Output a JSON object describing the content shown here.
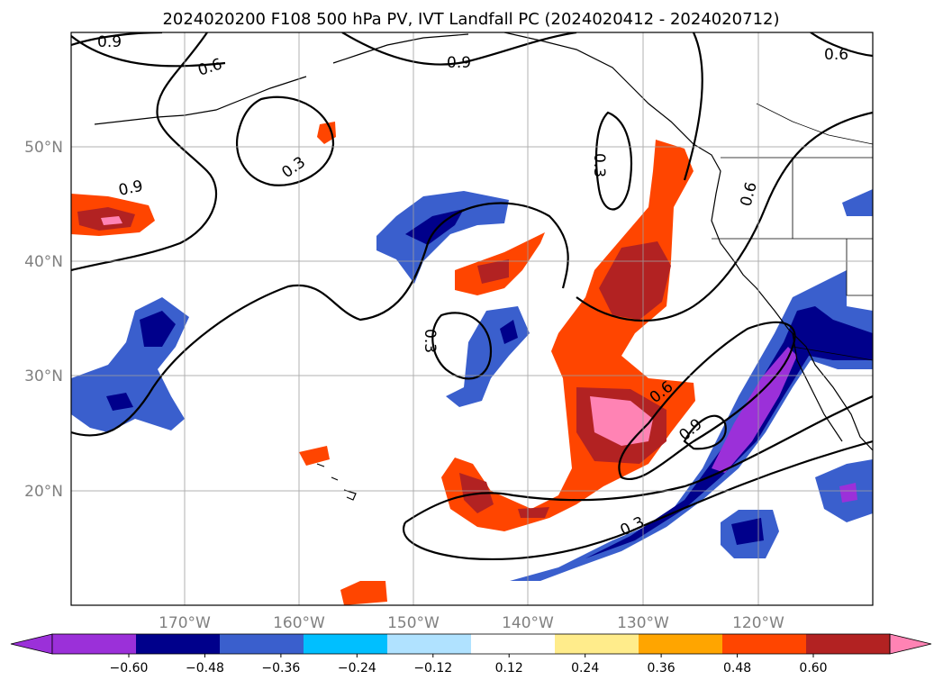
{
  "title": "2024020200 F108 500 hPa PV, IVT Landfall PC (2024020412 - 2024020712)",
  "map": {
    "lon_labels": [
      "170°W",
      "160°W",
      "150°W",
      "140°W",
      "130°W",
      "120°W"
    ],
    "lat_labels": [
      "50°N",
      "40°N",
      "30°N",
      "20°N"
    ],
    "contour_labels": [
      "0.9",
      "0.6",
      "0.9",
      "0.6",
      "0.3",
      "0.9",
      "0.3",
      "0.6",
      "0.3",
      "0.9",
      "0.6",
      "0.3"
    ]
  },
  "colorbar": {
    "ticks": [
      "−0.60",
      "−0.48",
      "−0.36",
      "−0.24",
      "−0.12",
      "0.12",
      "0.24",
      "0.36",
      "0.48",
      "0.60"
    ],
    "colors": [
      "#9b30d9",
      "#00008b",
      "#3a5fcd",
      "#00bfff",
      "#b0e2ff",
      "#ffffff",
      "#ffec8b",
      "#ffa500",
      "#ff4500",
      "#b22222",
      "#ff83b4",
      "#ff83b4"
    ]
  }
}
